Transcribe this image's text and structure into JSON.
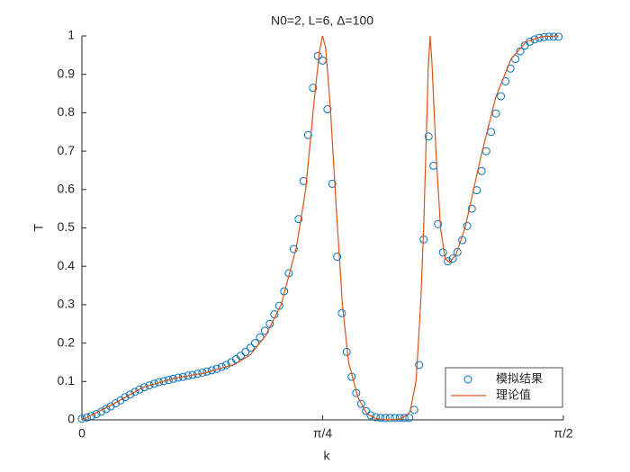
{
  "chart_data": {
    "type": "scatter",
    "title": "N0=2, L=6, Δ=100",
    "x_label": "k",
    "y_label": "T",
    "xlim": [
      0,
      1.5708
    ],
    "ylim": [
      0,
      1
    ],
    "xticks": [
      {
        "value": 0,
        "label": "0"
      },
      {
        "value": 0.7854,
        "label": "π/4"
      },
      {
        "value": 1.5708,
        "label": "π/2"
      }
    ],
    "yticks": [
      0,
      0.1,
      0.2,
      0.3,
      0.4,
      0.5,
      0.6,
      0.7,
      0.8,
      0.9,
      1
    ],
    "grid": false,
    "legend": "southeast",
    "series": [
      {
        "name": "模拟结果",
        "type": "scatter",
        "color": "#0072BD",
        "x": [
          0,
          0.016,
          0.031,
          0.047,
          0.063,
          0.079,
          0.094,
          0.11,
          0.126,
          0.141,
          0.157,
          0.173,
          0.188,
          0.204,
          0.22,
          0.236,
          0.251,
          0.267,
          0.283,
          0.298,
          0.314,
          0.33,
          0.346,
          0.361,
          0.377,
          0.393,
          0.408,
          0.424,
          0.44,
          0.456,
          0.471,
          0.487,
          0.503,
          0.518,
          0.534,
          0.55,
          0.565,
          0.581,
          0.597,
          0.613,
          0.628,
          0.644,
          0.66,
          0.675,
          0.691,
          0.707,
          0.723,
          0.738,
          0.754,
          0.77,
          0.785,
          0.801,
          0.817,
          0.833,
          0.848,
          0.864,
          0.88,
          0.895,
          0.911,
          0.927,
          0.942,
          0.958,
          0.974,
          0.99,
          1.005,
          1.021,
          1.037,
          1.052,
          1.068,
          1.084,
          1.1,
          1.115,
          1.131,
          1.147,
          1.162,
          1.178,
          1.194,
          1.21,
          1.225,
          1.241,
          1.257,
          1.272,
          1.288,
          1.304,
          1.319,
          1.335,
          1.351,
          1.367,
          1.382,
          1.398,
          1.414,
          1.43,
          1.445,
          1.461,
          1.477,
          1.492,
          1.508,
          1.524,
          1.539,
          1.555
        ],
        "values": [
          0.003,
          0.006,
          0.01,
          0.015,
          0.021,
          0.028,
          0.035,
          0.043,
          0.051,
          0.059,
          0.066,
          0.073,
          0.079,
          0.085,
          0.09,
          0.094,
          0.098,
          0.101,
          0.104,
          0.107,
          0.11,
          0.112,
          0.115,
          0.117,
          0.12,
          0.123,
          0.126,
          0.129,
          0.133,
          0.138,
          0.143,
          0.15,
          0.158,
          0.167,
          0.177,
          0.188,
          0.2,
          0.215,
          0.232,
          0.25,
          0.275,
          0.297,
          0.335,
          0.382,
          0.445,
          0.523,
          0.622,
          0.742,
          0.865,
          0.948,
          0.936,
          0.809,
          0.615,
          0.425,
          0.278,
          0.177,
          0.112,
          0.07,
          0.042,
          0.023,
          0.012,
          0.007,
          0.005,
          0.005,
          0.005,
          0.005,
          0.005,
          0.005,
          0.005,
          0.026,
          0.143,
          0.47,
          0.738,
          0.662,
          0.51,
          0.436,
          0.413,
          0.42,
          0.437,
          0.468,
          0.505,
          0.55,
          0.598,
          0.648,
          0.7,
          0.75,
          0.798,
          0.843,
          0.882,
          0.915,
          0.94,
          0.96,
          0.975,
          0.985,
          0.991,
          0.995,
          0.997,
          0.998,
          0.998,
          0.998
        ]
      },
      {
        "name": "理论值",
        "type": "line",
        "color": "#D95319",
        "x": [
          0,
          0.1,
          0.2,
          0.3,
          0.4,
          0.5,
          0.55,
          0.6,
          0.65,
          0.7,
          0.73,
          0.76,
          0.775,
          0.785,
          0.795,
          0.81,
          0.83,
          0.85,
          0.87,
          0.9,
          0.93,
          0.96,
          1.0,
          1.04,
          1.07,
          1.09,
          1.105,
          1.115,
          1.13,
          1.136,
          1.142,
          1.155,
          1.17,
          1.185,
          1.2,
          1.22,
          1.25,
          1.3,
          1.35,
          1.4,
          1.45,
          1.5,
          1.555
        ],
        "values": [
          0,
          0.04,
          0.085,
          0.108,
          0.122,
          0.145,
          0.17,
          0.22,
          0.3,
          0.45,
          0.6,
          0.85,
          0.96,
          1,
          0.97,
          0.82,
          0.55,
          0.3,
          0.15,
          0.06,
          0.015,
          0.003,
          0,
          0.002,
          0.02,
          0.1,
          0.3,
          0.5,
          0.92,
          1,
          0.93,
          0.7,
          0.5,
          0.42,
          0.41,
          0.43,
          0.5,
          0.68,
          0.84,
          0.94,
          0.985,
          0.998,
          1
        ]
      }
    ]
  }
}
